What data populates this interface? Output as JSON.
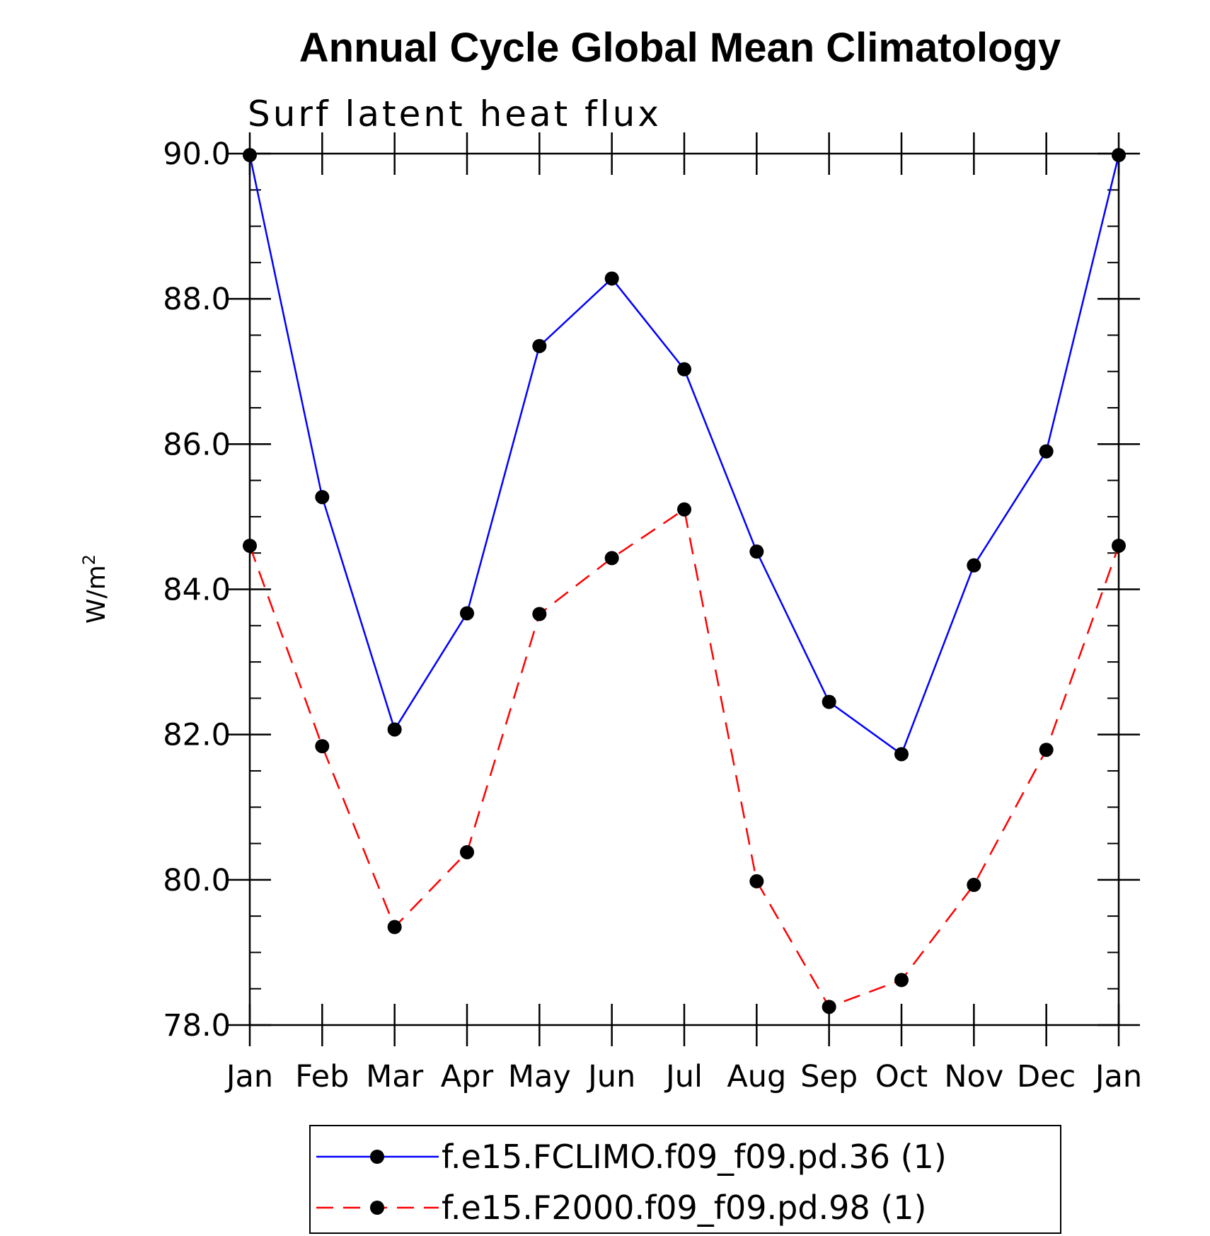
{
  "chart_data": {
    "type": "line",
    "title": "Annual Cycle Global Mean Climatology",
    "subtitle": "Surf latent heat flux",
    "xlabel": "",
    "ylabel": "W/m",
    "ylabel_superscript": "2",
    "categories": [
      "Jan",
      "Feb",
      "Mar",
      "Apr",
      "May",
      "Jun",
      "Jul",
      "Aug",
      "Sep",
      "Oct",
      "Nov",
      "Dec",
      "Jan"
    ],
    "ylim": [
      78.0,
      90.0
    ],
    "y_major_ticks": [
      78.0,
      80.0,
      82.0,
      84.0,
      86.0,
      88.0,
      90.0
    ],
    "y_tick_labels": [
      "78.0",
      "80.0",
      "82.0",
      "84.0",
      "86.0",
      "88.0",
      "90.0"
    ],
    "y_minor_step": 0.5,
    "grid": false,
    "legend_position": "bottom-center",
    "series": [
      {
        "name": "f.e15.FCLIMO.f09_f09.pd.36 (1)",
        "color": "#0000ff",
        "line_style": "solid",
        "marker": "filled-circle",
        "marker_color": "#000000",
        "values": [
          89.98,
          85.27,
          82.07,
          83.67,
          87.35,
          88.28,
          87.03,
          84.52,
          82.45,
          81.73,
          84.33,
          85.9,
          89.98
        ]
      },
      {
        "name": "f.e15.F2000.f09_f09.pd.98 (1)",
        "color": "#ff0000",
        "line_style": "dashed",
        "marker": "filled-circle",
        "marker_color": "#000000",
        "values": [
          84.6,
          81.84,
          79.35,
          80.38,
          83.66,
          84.43,
          85.1,
          79.98,
          78.25,
          78.62,
          79.93,
          81.79,
          84.6
        ]
      }
    ]
  }
}
